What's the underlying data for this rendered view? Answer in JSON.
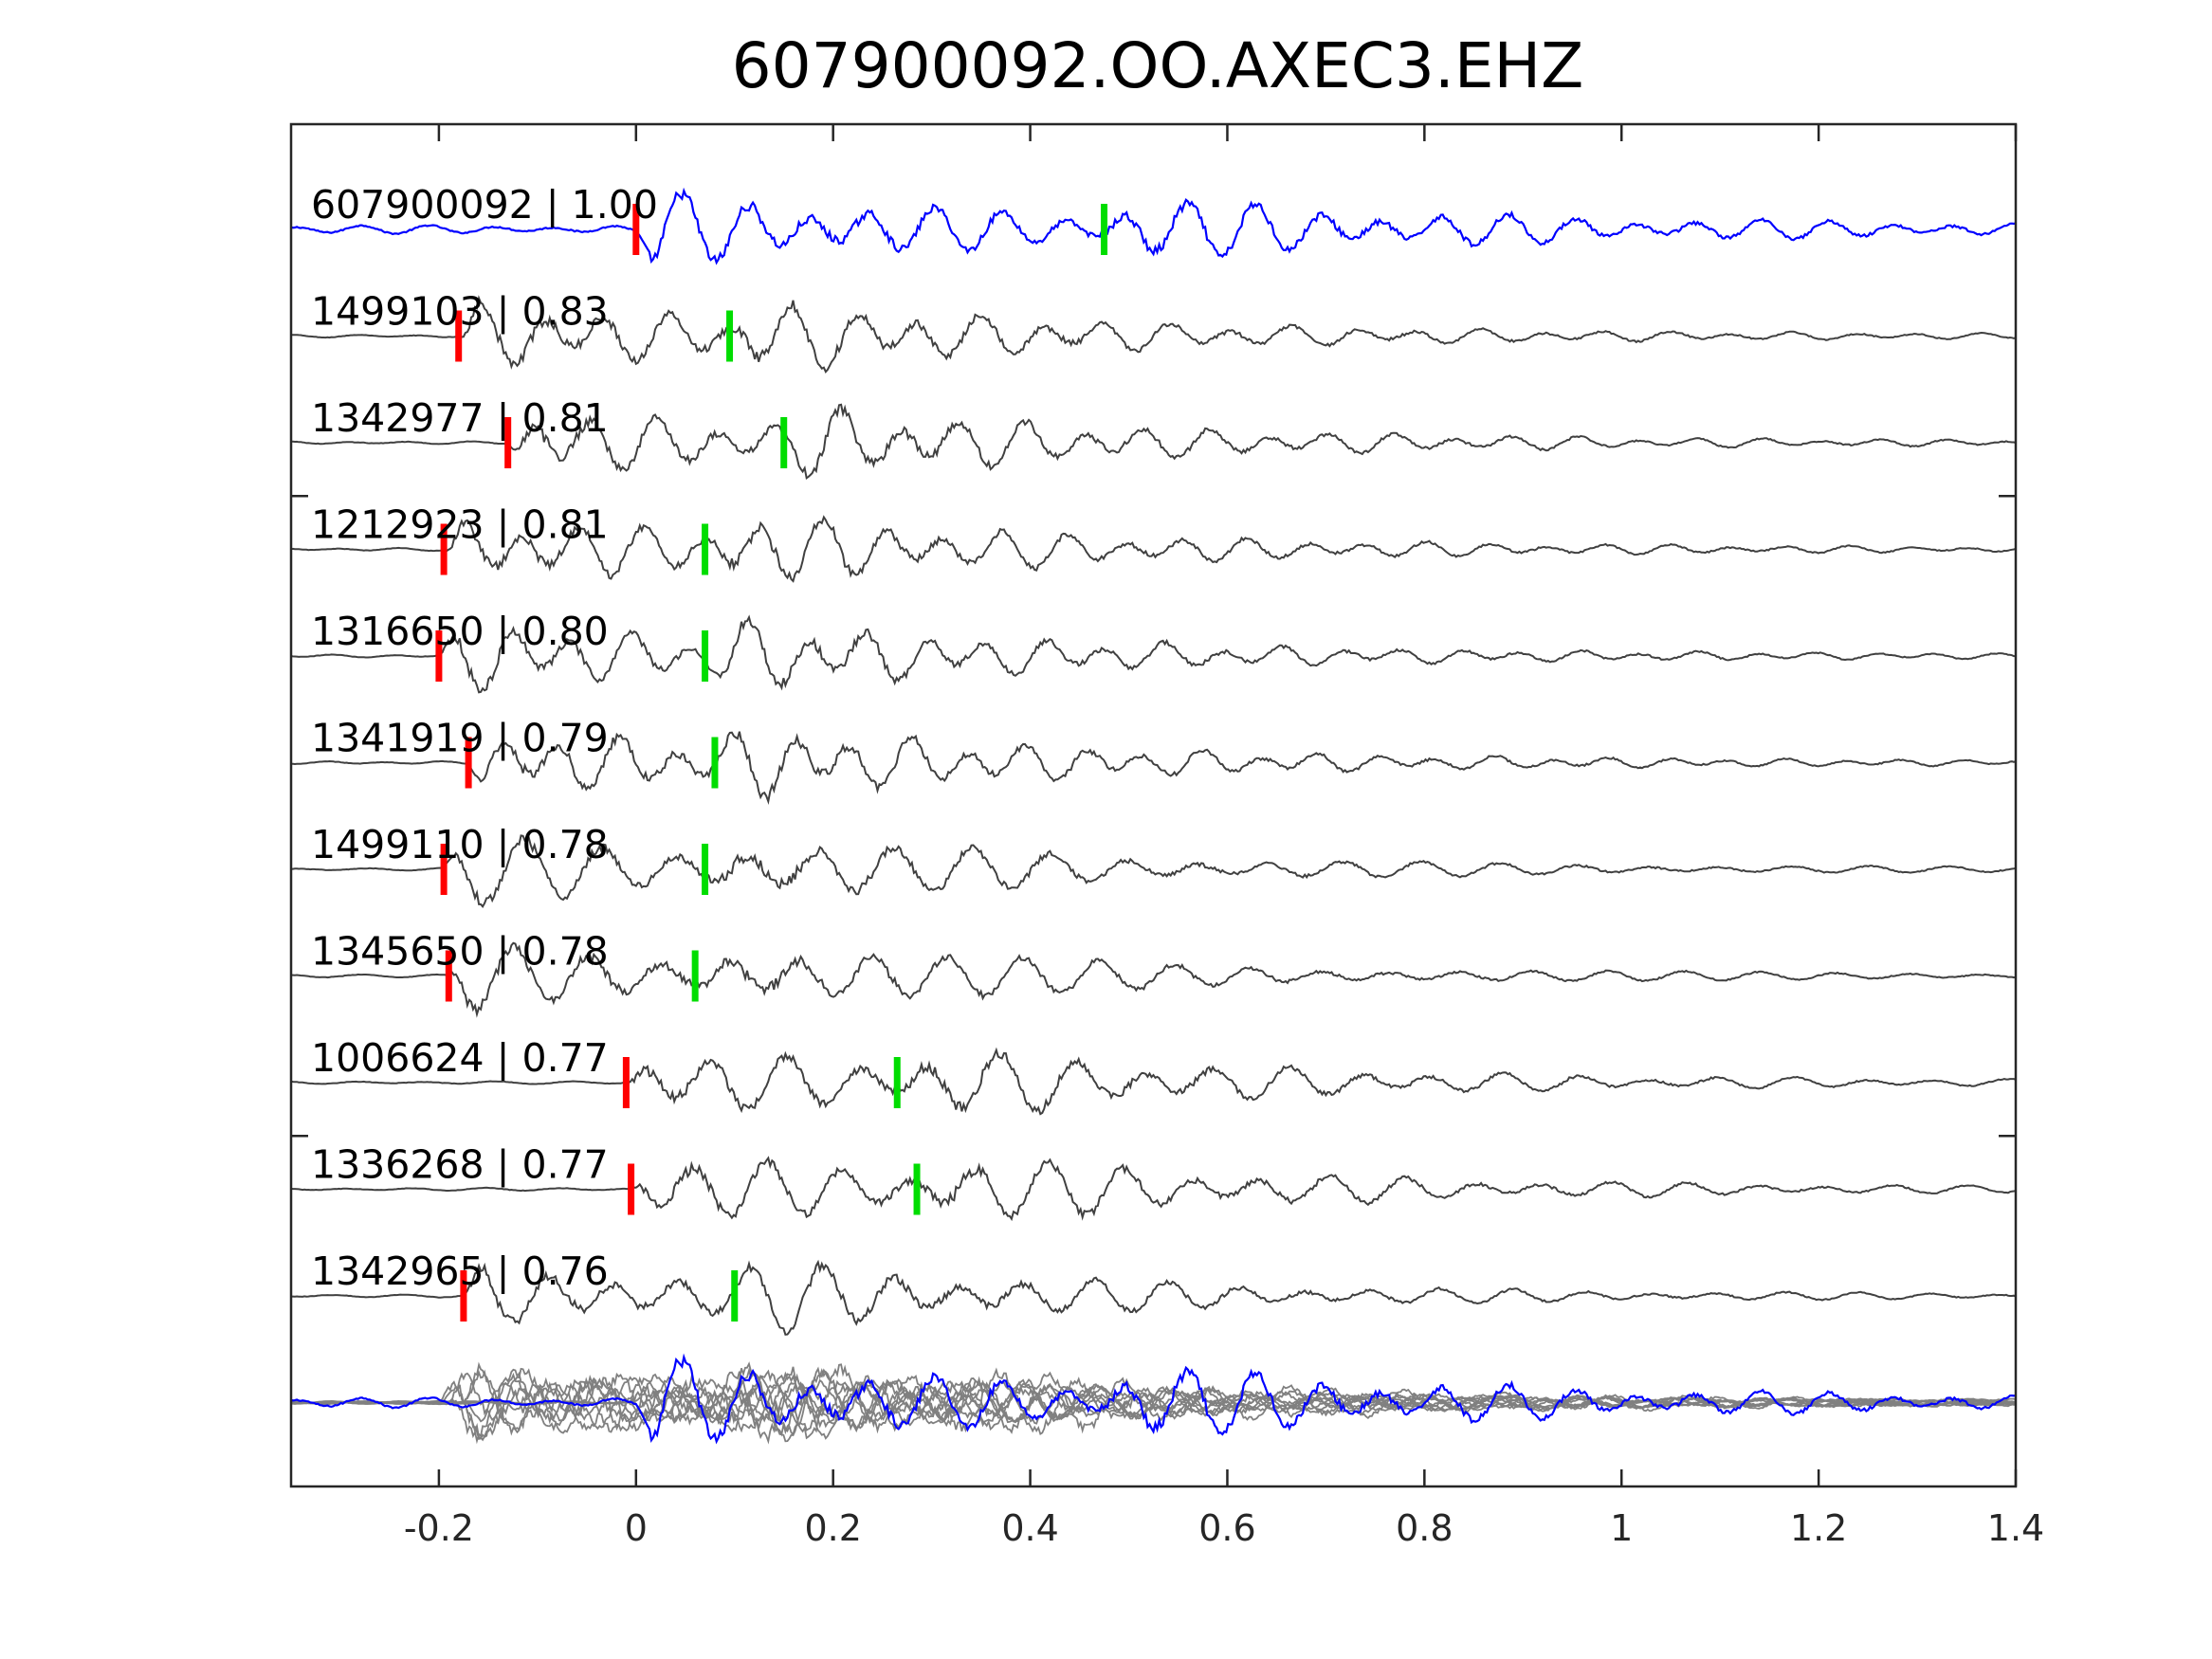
{
  "chart_data": {
    "type": "line",
    "title": "607900092.OO.AXEC3.EHZ",
    "xlabel": "",
    "ylabel": "",
    "xlim": [
      -0.35,
      1.4
    ],
    "grid": false,
    "x_ticks": [
      {
        "value": -0.2,
        "label": "-0.2"
      },
      {
        "value": 0,
        "label": "0"
      },
      {
        "value": 0.2,
        "label": "0.2"
      },
      {
        "value": 0.4,
        "label": "0.4"
      },
      {
        "value": 0.6,
        "label": "0.6"
      },
      {
        "value": 0.8,
        "label": "0.8"
      },
      {
        "value": 1,
        "label": "1"
      },
      {
        "value": 1.2,
        "label": "1.2"
      },
      {
        "value": 1.4,
        "label": "1.4"
      }
    ],
    "colors": {
      "target_trace": "#0000ff",
      "template_trace": "#404040",
      "stack_trace": "#808080",
      "p_pick": "#ff0000",
      "s_pick": "#00dd00"
    },
    "series": [
      {
        "label": "607900092 | 1.00",
        "p_pick": 0.0,
        "s_pick": 0.475,
        "target": true
      },
      {
        "label": "1499103 | 0.83",
        "p_pick": -0.18,
        "s_pick": 0.095
      },
      {
        "label": "1342977 | 0.81",
        "p_pick": -0.13,
        "s_pick": 0.15
      },
      {
        "label": "1212923 | 0.81",
        "p_pick": -0.195,
        "s_pick": 0.07
      },
      {
        "label": "1316650 | 0.80",
        "p_pick": -0.2,
        "s_pick": 0.07
      },
      {
        "label": "1341919 | 0.79",
        "p_pick": -0.17,
        "s_pick": 0.08
      },
      {
        "label": "1499110 | 0.78",
        "p_pick": -0.195,
        "s_pick": 0.07
      },
      {
        "label": "1345650 | 0.78",
        "p_pick": -0.19,
        "s_pick": 0.06
      },
      {
        "label": "1006624 | 0.77",
        "p_pick": -0.01,
        "s_pick": 0.265
      },
      {
        "label": "1336268 | 0.77",
        "p_pick": -0.005,
        "s_pick": 0.285
      },
      {
        "label": "1342965 | 0.76",
        "p_pick": -0.175,
        "s_pick": 0.1
      }
    ]
  }
}
